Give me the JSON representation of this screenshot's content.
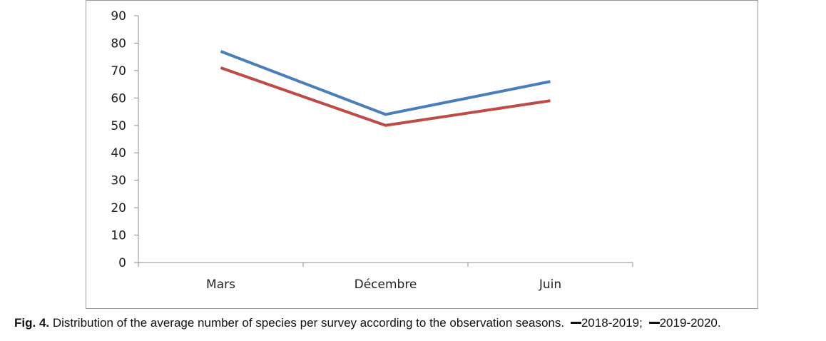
{
  "chart_data": {
    "type": "line",
    "title": "",
    "xlabel": "",
    "ylabel": "",
    "categories": [
      "Mars",
      "Décembre",
      "Juin"
    ],
    "series": [
      {
        "name": "2018-2019",
        "values": [
          77,
          54,
          66
        ],
        "color": "#4a7ebb"
      },
      {
        "name": "2019-2020",
        "values": [
          71,
          50,
          59
        ],
        "color": "#be4b48"
      }
    ],
    "ylim": [
      0,
      90
    ],
    "yticks": [
      0,
      10,
      20,
      30,
      40,
      50,
      60,
      70,
      80,
      90
    ],
    "grid": false,
    "legend": "in caption"
  },
  "caption": {
    "fig_label": "Fig. 4.",
    "text": "Distribution of the average number of species per survey according to the observation seasons.",
    "legend_1": "2018-2019;",
    "legend_2": "2019-2020."
  },
  "colors": {
    "axis": "#8c8c8c",
    "series_blue": "#4a7ebb",
    "series_red": "#be4b48"
  }
}
